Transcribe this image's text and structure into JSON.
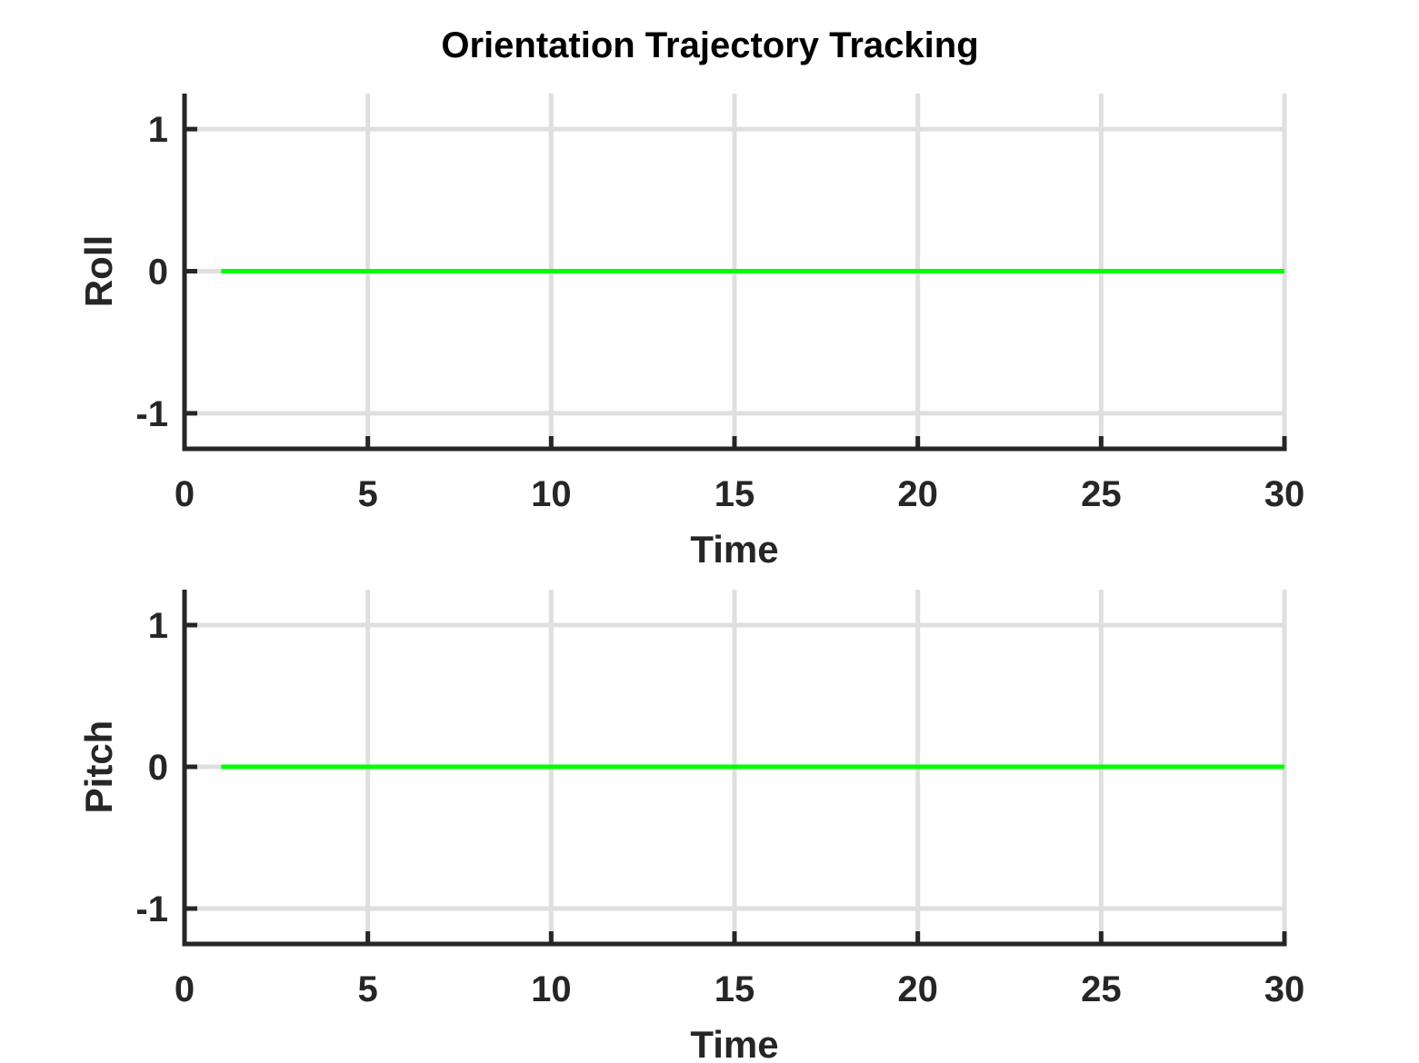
{
  "chart_data": {
    "title": "Orientation Trajectory Tracking",
    "colors": {
      "axis": "#262626",
      "grid": "#dfdfdf",
      "series": "#00ff00"
    },
    "panels": [
      {
        "type": "line",
        "xlabel": "Time",
        "ylabel": "Roll",
        "xlim": [
          0,
          30
        ],
        "ylim": [
          -1.25,
          1.25
        ],
        "xticks": [
          0,
          5,
          10,
          15,
          20,
          25,
          30
        ],
        "yticks": [
          -1,
          0,
          1
        ],
        "grid": true,
        "series": [
          {
            "name": "roll",
            "x": [
              1,
              30
            ],
            "y": [
              0,
              0
            ]
          }
        ]
      },
      {
        "type": "line",
        "xlabel": "Time",
        "ylabel": "Pitch",
        "xlim": [
          0,
          30
        ],
        "ylim": [
          -1.25,
          1.25
        ],
        "xticks": [
          0,
          5,
          10,
          15,
          20,
          25,
          30
        ],
        "yticks": [
          -1,
          0,
          1
        ],
        "grid": true,
        "series": [
          {
            "name": "pitch",
            "x": [
              1,
              30
            ],
            "y": [
              0,
              0
            ]
          }
        ]
      }
    ]
  }
}
